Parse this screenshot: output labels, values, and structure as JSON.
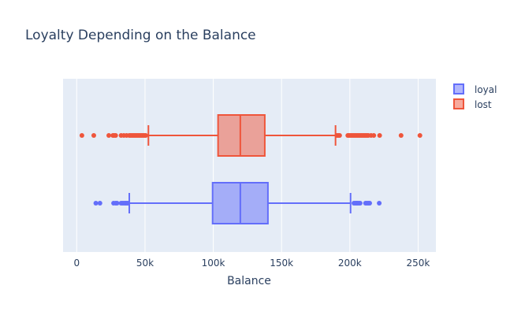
{
  "chart_data": {
    "type": "box",
    "orientation": "horizontal",
    "title": "Loyalty Depending on the Balance",
    "xlabel": "Balance",
    "ylabel": "",
    "xlim": [
      -10000,
      263000
    ],
    "x_ticks": [
      {
        "value": 0,
        "label": "0"
      },
      {
        "value": 50000,
        "label": "50k"
      },
      {
        "value": 100000,
        "label": "100k"
      },
      {
        "value": 150000,
        "label": "150k"
      },
      {
        "value": 200000,
        "label": "200k"
      },
      {
        "value": 250000,
        "label": "250k"
      }
    ],
    "grid": true,
    "legend": "top-right",
    "series": [
      {
        "name": "loyal",
        "color": "#636efa",
        "fill": "rgba(99,110,250,0.5)",
        "lower_fence": 38500,
        "q1": 99500,
        "median": 119800,
        "q3": 140000,
        "upper_fence": 200500,
        "outliers": [
          14000,
          17000,
          27000,
          28500,
          29500,
          32500,
          33500,
          34500,
          35500,
          36000,
          36800,
          37500,
          203000,
          204000,
          204800,
          205500,
          206500,
          207500,
          211500,
          212500,
          213500,
          214500,
          221500
        ]
      },
      {
        "name": "lost",
        "color": "#ef553b",
        "fill": "rgba(239,85,59,0.5)",
        "lower_fence": 52500,
        "q1": 103500,
        "median": 119800,
        "q3": 137700,
        "upper_fence": 189500,
        "outliers": [
          3800,
          12500,
          23500,
          26500,
          27500,
          28500,
          32500,
          34500,
          36500,
          38500,
          39500,
          40500,
          41500,
          42500,
          43500,
          44500,
          45500,
          46500,
          47500,
          48500,
          49500,
          50500,
          190500,
          191500,
          192500,
          198500,
          199500,
          200500,
          201500,
          202500,
          203500,
          204500,
          205500,
          206500,
          207500,
          208500,
          209500,
          210500,
          211500,
          212500,
          213500,
          215500,
          217500,
          221800,
          237500,
          251300
        ]
      }
    ]
  }
}
